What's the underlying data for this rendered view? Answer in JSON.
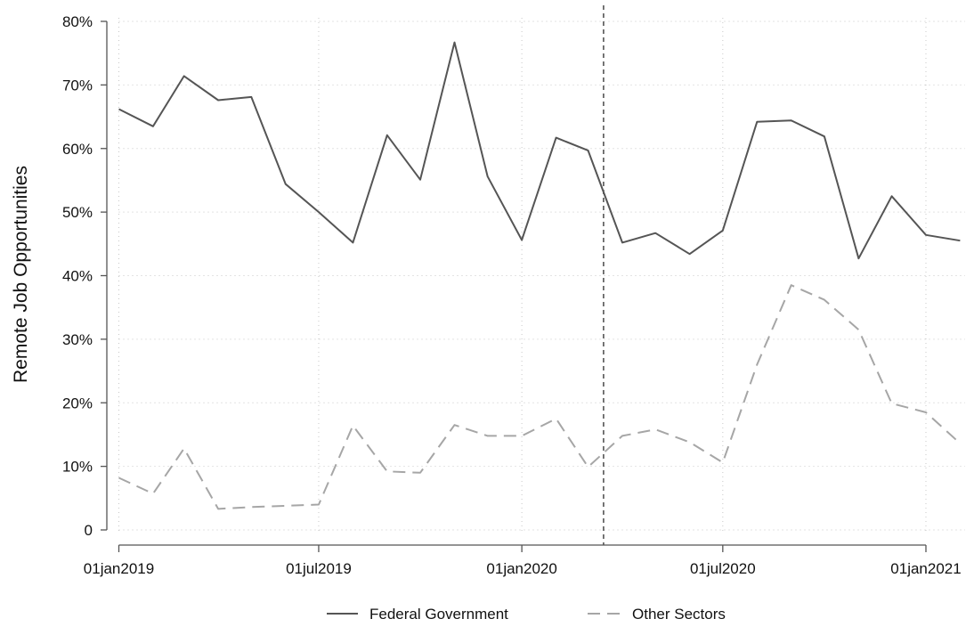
{
  "chart_data": {
    "type": "line",
    "title": "",
    "xlabel": "",
    "ylabel": "Remote Job Opportunities",
    "ylim": [
      0,
      80
    ],
    "xlim": [
      "2019-01-01",
      "2021-02-15"
    ],
    "y_ticks": [
      0,
      10,
      20,
      30,
      40,
      50,
      60,
      70,
      80
    ],
    "y_tick_labels": [
      "0",
      "10%",
      "20%",
      "30%",
      "40%",
      "50%",
      "60%",
      "70%",
      "80%"
    ],
    "x_ticks": [
      "2019-01-01",
      "2019-07-01",
      "2020-01-01",
      "2020-07-01",
      "2021-01-01"
    ],
    "x_tick_labels": [
      "01jan2019",
      "01jul2019",
      "01jan2020",
      "01jul2020",
      "01jan2021"
    ],
    "grid": true,
    "legend_position": "bottom",
    "reference_line": {
      "x": "2020-03-15",
      "style": "dashed"
    },
    "x": [
      "2019-01-01",
      "2019-02-01",
      "2019-03-01",
      "2019-04-01",
      "2019-05-01",
      "2019-06-01",
      "2019-07-01",
      "2019-08-01",
      "2019-09-01",
      "2019-10-01",
      "2019-11-01",
      "2019-12-01",
      "2020-01-01",
      "2020-02-01",
      "2020-03-01",
      "2020-04-01",
      "2020-05-01",
      "2020-06-01",
      "2020-07-01",
      "2020-08-01",
      "2020-09-01",
      "2020-10-01",
      "2020-11-01",
      "2020-12-01",
      "2021-01-01",
      "2021-02-01"
    ],
    "series": [
      {
        "name": "Federal Government",
        "style": "solid",
        "color": "#555555",
        "values": [
          66.2,
          63.5,
          71.4,
          67.6,
          68.1,
          54.4,
          50.0,
          45.2,
          62.1,
          55.1,
          76.7,
          55.6,
          45.6,
          61.7,
          59.7,
          45.2,
          46.7,
          43.4,
          47.1,
          64.2,
          64.4,
          61.9,
          42.7,
          52.5,
          46.4,
          45.5
        ]
      },
      {
        "name": "Other Sectors",
        "style": "dashed",
        "color": "#a6a6a6",
        "values": [
          8.2,
          5.7,
          12.8,
          3.3,
          3.6,
          3.8,
          4.0,
          16.4,
          9.2,
          9.0,
          16.5,
          14.8,
          14.8,
          17.5,
          9.9,
          14.8,
          15.8,
          13.8,
          10.6,
          26.0,
          38.5,
          36.2,
          31.5,
          19.9,
          18.5,
          13.6
        ]
      }
    ]
  }
}
